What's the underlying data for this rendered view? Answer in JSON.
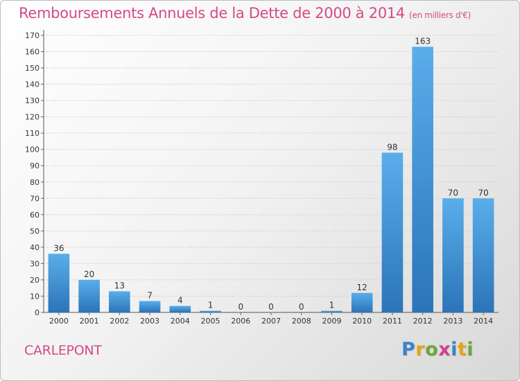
{
  "title": "Remboursements Annuels de la Dette de 2000 à 2014",
  "unit": "(en milliers d'€)",
  "commune": "CARLEPONT",
  "logo": {
    "letters": [
      "P",
      "r",
      "o",
      "x",
      "i",
      "t",
      "i"
    ],
    "colors": [
      "#3a83c8",
      "#e8a21a",
      "#6aa83a",
      "#d43f8d",
      "#3a83c8",
      "#e8a21a",
      "#6aa83a"
    ]
  },
  "chart_data": {
    "type": "bar",
    "categories": [
      "2000",
      "2001",
      "2002",
      "2003",
      "2004",
      "2005",
      "2006",
      "2007",
      "2008",
      "2009",
      "2010",
      "2011",
      "2012",
      "2013",
      "2014"
    ],
    "values": [
      36,
      20,
      13,
      7,
      4,
      1,
      0,
      0,
      0,
      1,
      12,
      98,
      163,
      70,
      70
    ],
    "data_labels": [
      "36",
      "20",
      "13",
      "7",
      "4",
      "1",
      "0",
      "0",
      "0",
      "1",
      "12",
      "98",
      "163",
      "70",
      "70"
    ],
    "ylim": [
      0,
      170
    ],
    "yticks": [
      "0",
      "10",
      "20",
      "30",
      "40",
      "50",
      "60",
      "70",
      "80",
      "90",
      "100",
      "110",
      "120",
      "130",
      "140",
      "150",
      "160",
      "170"
    ],
    "grid": true,
    "bar_color": "#3d8fd4",
    "title": "Remboursements Annuels de la Dette de 2000 à 2014",
    "xlabel": "",
    "ylabel": ""
  }
}
